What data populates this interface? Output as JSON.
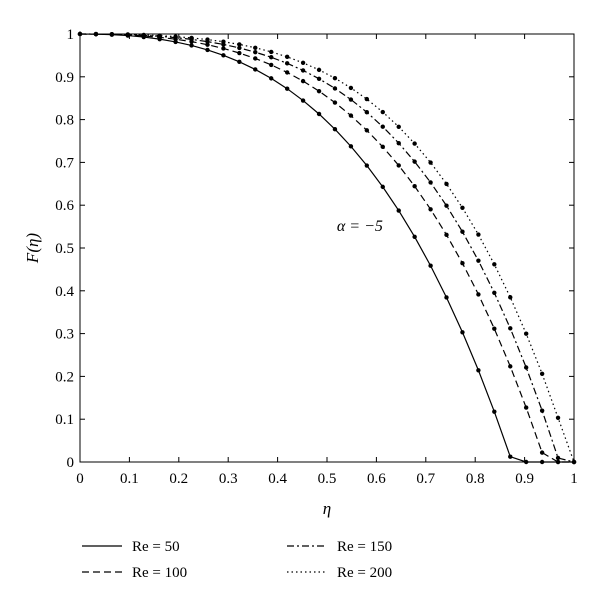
{
  "chart_data": {
    "type": "line",
    "title": "",
    "xlabel": "η",
    "ylabel": "F(η)",
    "xlim": [
      0,
      1
    ],
    "ylim": [
      0,
      1
    ],
    "grid": false,
    "legend_position": "bottom",
    "x_ticks": [
      "0",
      "0.1",
      "0.2",
      "0.3",
      "0.4",
      "0.5",
      "0.6",
      "0.7",
      "0.8",
      "0.9",
      "1"
    ],
    "y_ticks": [
      "0",
      "0.1",
      "0.2",
      "0.3",
      "0.4",
      "0.5",
      "0.6",
      "0.7",
      "0.8",
      "0.9",
      "1"
    ],
    "annotation": "α = −5",
    "annotation_pos": {
      "x": 0.52,
      "y": 0.54
    },
    "x": [
      0,
      0.0323,
      0.0645,
      0.0968,
      0.129,
      0.1613,
      0.1935,
      0.2258,
      0.2581,
      0.2903,
      0.3226,
      0.3548,
      0.3871,
      0.4194,
      0.4516,
      0.4839,
      0.5161,
      0.5484,
      0.5806,
      0.6129,
      0.6452,
      0.6774,
      0.7097,
      0.7419,
      0.7742,
      0.8065,
      0.8387,
      0.871,
      0.9032,
      0.9355,
      0.9677,
      1
    ],
    "series": [
      {
        "name": "Re = 50",
        "style": "solid",
        "values": [
          1,
          0.9996,
          0.9985,
          0.9963,
          0.9929,
          0.988,
          0.9815,
          0.9732,
          0.9628,
          0.9502,
          0.9351,
          0.9172,
          0.8963,
          0.8722,
          0.8445,
          0.8131,
          0.7775,
          0.7375,
          0.6927,
          0.6428,
          0.5874,
          0.5261,
          0.4586,
          0.3844,
          0.3031,
          0.2143,
          0.1176,
          0.0124,
          0,
          0,
          0,
          0
        ]
      },
      {
        "name": "Re = 100",
        "style": "dashed",
        "values": [
          1,
          0.9998,
          0.999,
          0.9976,
          0.9954,
          0.9922,
          0.9879,
          0.9822,
          0.975,
          0.9662,
          0.9555,
          0.9428,
          0.9278,
          0.9102,
          0.8899,
          0.8665,
          0.8398,
          0.8094,
          0.775,
          0.7363,
          0.6929,
          0.6444,
          0.5905,
          0.5307,
          0.4645,
          0.3916,
          0.3114,
          0.2234,
          0.1271,
          0.0219,
          0,
          0
        ]
      },
      {
        "name": "Re = 150",
        "style": "dashdot",
        "values": [
          1,
          0.9998,
          0.9993,
          0.9984,
          0.9968,
          0.9946,
          0.9915,
          0.9874,
          0.9822,
          0.9756,
          0.9675,
          0.9576,
          0.9457,
          0.9315,
          0.9149,
          0.8954,
          0.8729,
          0.8469,
          0.8172,
          0.7834,
          0.745,
          0.7018,
          0.6532,
          0.5988,
          0.538,
          0.4704,
          0.3954,
          0.3124,
          0.2208,
          0.12,
          0.0094,
          0
        ]
      },
      {
        "name": "Re = 200",
        "style": "dotted",
        "values": [
          1,
          0.9999,
          0.9996,
          0.9989,
          0.9978,
          0.9962,
          0.9939,
          0.9909,
          0.987,
          0.982,
          0.9757,
          0.9678,
          0.9582,
          0.9466,
          0.9327,
          0.9162,
          0.8968,
          0.8741,
          0.8479,
          0.8177,
          0.7832,
          0.744,
          0.6997,
          0.6498,
          0.5939,
          0.5314,
          0.4619,
          0.3849,
          0.2998,
          0.2061,
          0.1033,
          0
        ]
      }
    ]
  }
}
